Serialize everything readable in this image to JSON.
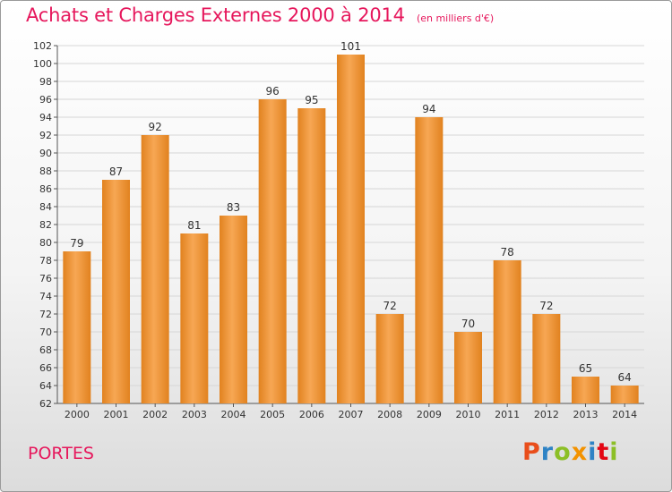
{
  "header": {
    "title": "Achats et Charges Externes 2000 à 2014",
    "subtitle": "(en milliers d'€)"
  },
  "footer": {
    "commune": "PORTES",
    "logo": "Proxiti",
    "logo_colors": [
      "#e94e1b",
      "#2e83c5",
      "#8cbf26",
      "#f39200",
      "#2e83c5",
      "#e30613",
      "#8cbf26"
    ]
  },
  "colors": {
    "bar_light": "#f7a754",
    "bar_dark": "#e1821f",
    "accent": "#e6175c",
    "grid": "#d6d6d6"
  },
  "chart_data": {
    "type": "bar",
    "categories": [
      "2000",
      "2001",
      "2002",
      "2003",
      "2004",
      "2005",
      "2006",
      "2007",
      "2008",
      "2009",
      "2010",
      "2011",
      "2012",
      "2013",
      "2014"
    ],
    "values": [
      79,
      87,
      92,
      81,
      83,
      96,
      95,
      101,
      72,
      94,
      70,
      78,
      72,
      65,
      64
    ],
    "ylim": [
      62,
      102
    ],
    "yticks": [
      62,
      64,
      66,
      68,
      70,
      72,
      74,
      76,
      78,
      80,
      82,
      84,
      86,
      88,
      90,
      92,
      94,
      96,
      98,
      100,
      102
    ],
    "grid": true,
    "title": "Achats et Charges Externes 2000 à 2014",
    "xlabel": "",
    "ylabel": ""
  }
}
